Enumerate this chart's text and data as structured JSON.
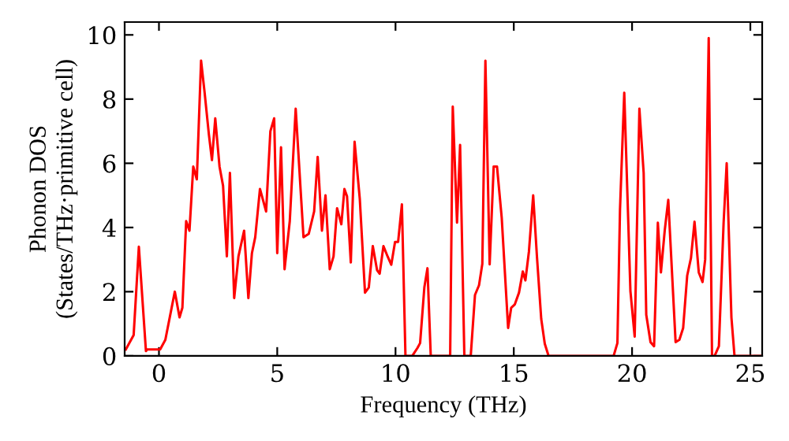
{
  "chart_data": {
    "type": "line",
    "xlabel": "Frequency (THz)",
    "ylabel": "Phonon DOS\n(States/THz·primitive cell)",
    "xlim": [
      -1.45,
      25.5
    ],
    "ylim": [
      0,
      10.4
    ],
    "xticks": [
      0,
      5,
      10,
      15,
      20,
      25
    ],
    "yticks": [
      0,
      2,
      4,
      6,
      8,
      10
    ],
    "grid": false,
    "marker": "none",
    "line_style": "solid",
    "series": [
      {
        "color": "#ff0000",
        "x": [
          -1.4,
          -1.07,
          -0.85,
          -0.55,
          -0.5,
          0.05,
          0.27,
          0.67,
          0.87,
          0.99,
          1.15,
          1.29,
          1.45,
          1.6,
          1.78,
          1.93,
          2.11,
          2.24,
          2.38,
          2.56,
          2.71,
          2.87,
          3.0,
          3.18,
          3.36,
          3.6,
          3.78,
          3.93,
          4.07,
          4.27,
          4.53,
          4.71,
          4.87,
          5.0,
          5.16,
          5.31,
          5.53,
          5.78,
          6.11,
          6.33,
          6.56,
          6.71,
          6.89,
          7.04,
          7.22,
          7.38,
          7.53,
          7.71,
          7.84,
          7.95,
          8.11,
          8.27,
          8.49,
          8.71,
          8.87,
          9.04,
          9.22,
          9.33,
          9.49,
          9.67,
          9.82,
          9.98,
          10.11,
          10.27,
          10.42,
          10.71,
          10.93,
          11.04,
          11.22,
          11.35,
          11.49,
          12.31,
          12.42,
          12.6,
          12.73,
          12.91,
          13.18,
          13.36,
          13.53,
          13.67,
          13.8,
          13.98,
          14.15,
          14.29,
          14.49,
          14.76,
          14.89,
          15.04,
          15.22,
          15.38,
          15.49,
          15.64,
          15.82,
          15.98,
          16.16,
          16.31,
          16.47,
          19.22,
          19.38,
          19.49,
          19.67,
          19.93,
          20.11,
          20.31,
          20.49,
          20.6,
          20.78,
          20.93,
          21.09,
          21.22,
          21.38,
          21.53,
          21.84,
          22.0,
          22.16,
          22.33,
          22.49,
          22.64,
          22.82,
          22.98,
          23.09,
          23.24,
          23.38,
          23.49,
          23.67,
          23.87,
          24.0,
          24.2,
          24.33,
          25.5
        ],
        "values": [
          0.2,
          0.65,
          3.4,
          0.15,
          0.2,
          0.2,
          0.5,
          2.0,
          1.2,
          1.5,
          4.2,
          3.9,
          5.9,
          5.5,
          9.2,
          8.2,
          6.9,
          6.1,
          7.4,
          5.9,
          5.3,
          3.1,
          5.7,
          1.8,
          3.1,
          3.9,
          1.8,
          3.2,
          3.7,
          5.2,
          4.5,
          7.0,
          7.4,
          3.2,
          6.5,
          2.7,
          4.2,
          7.7,
          3.7,
          3.8,
          4.5,
          6.2,
          3.9,
          5.0,
          2.7,
          3.1,
          4.6,
          4.1,
          5.2,
          4.97,
          2.91,
          6.67,
          4.89,
          1.97,
          2.13,
          3.42,
          2.67,
          2.56,
          3.42,
          3.09,
          2.84,
          3.55,
          3.55,
          4.72,
          0,
          0,
          0.25,
          0.4,
          2.14,
          2.73,
          0,
          0,
          7.77,
          4.15,
          6.57,
          0,
          0,
          1.9,
          2.2,
          2.87,
          9.2,
          2.85,
          5.9,
          5.9,
          4.3,
          0.87,
          1.5,
          1.6,
          1.97,
          2.63,
          2.35,
          3.25,
          5.0,
          3.08,
          1.15,
          0.38,
          0,
          0,
          0.4,
          4.56,
          8.2,
          2.02,
          0.6,
          7.7,
          5.7,
          1.28,
          0.43,
          0.3,
          4.15,
          2.6,
          3.9,
          4.86,
          0.43,
          0.5,
          0.87,
          2.5,
          3.05,
          4.18,
          2.6,
          2.3,
          3.0,
          9.9,
          0,
          0,
          0.3,
          4.15,
          6.0,
          1.2,
          0,
          0
        ]
      }
    ]
  }
}
